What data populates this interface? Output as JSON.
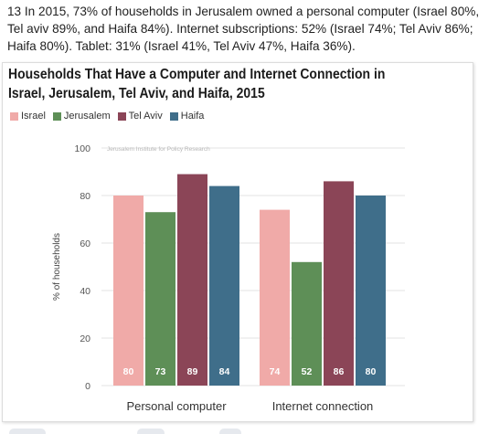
{
  "intro_text": "13 In 2015, 73% of households in Jerusalem owned a personal computer (Israel 80%, Tel aviv 89%, and Haifa 84%). Internet subscriptions: 52% (Israel 74%; Tel Aviv 86%; Haifa 80%). Tablet: 31% (Israel 41%, Tel Aviv 47%, Haifa 36%).",
  "chart_data": {
    "type": "bar",
    "title": "Households That Have a Computer and Internet Connection in Israel, Jerusalem, Tel Aviv, and Haifa, 2015",
    "ylabel": "% of households",
    "xlabel": "",
    "watermark": "Jerusalem Institute for Policy Research",
    "ylim": [
      0,
      100
    ],
    "yticks": [
      "0",
      "20",
      "40",
      "60",
      "80",
      "100"
    ],
    "categories": [
      "Personal computer",
      "Internet connection"
    ],
    "series": [
      {
        "name": "Israel",
        "color": "#f0aaa8",
        "values": [
          80,
          74
        ]
      },
      {
        "name": "Jerusalem",
        "color": "#5e8f57",
        "values": [
          73,
          52
        ]
      },
      {
        "name": "Tel Aviv",
        "color": "#8b4557",
        "values": [
          89,
          86
        ]
      },
      {
        "name": "Haifa",
        "color": "#3f6e8a",
        "values": [
          84,
          80
        ]
      }
    ],
    "data_labels": [
      [
        "80",
        "73",
        "89",
        "84"
      ],
      [
        "74",
        "52",
        "86",
        "80"
      ]
    ],
    "grid": true,
    "legend_position": "top-left"
  }
}
